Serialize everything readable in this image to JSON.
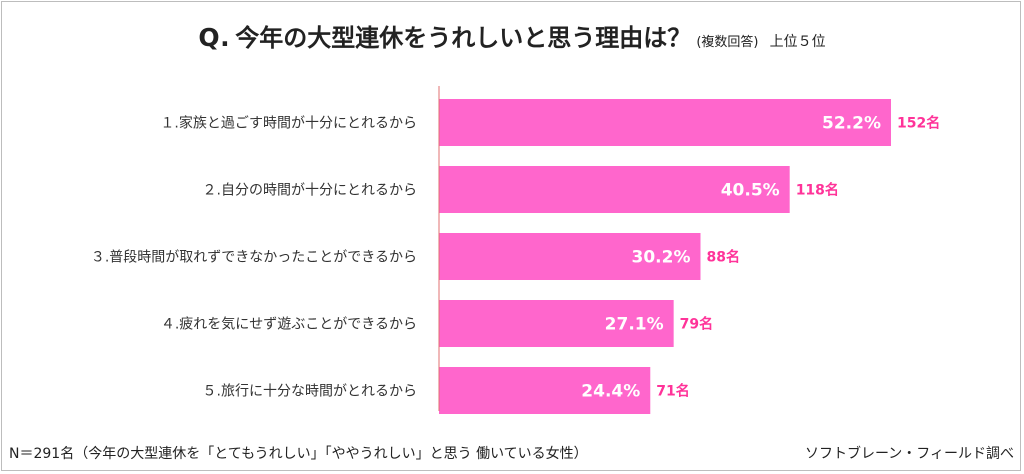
{
  "title": {
    "q": "Q.",
    "text": "今年の大型連休をうれしいと思う理由は？",
    "note": "(複数回答)",
    "rank": "上位５位"
  },
  "footer": {
    "sample": "N＝291名（今年の大型連休を「とてもうれしい」「ややうれしい」と思う 働いている女性）",
    "source": "ソフトブレーン・フィールド調べ"
  },
  "colors": {
    "bar": "#ff66cc",
    "count_label": "#ff3399",
    "axis": "#e07070"
  },
  "chart_data": {
    "type": "bar",
    "orientation": "horizontal",
    "categories": [
      "１.家族と過ごす時間が十分にとれるから",
      "２.自分の時間が十分にとれるから",
      "３.普段時間が取れずできなかったことができるから",
      "４.疲れを気にせず遊ぶことができるから",
      "５.旅行に十分な時間がとれるから"
    ],
    "values": [
      52.2,
      40.5,
      30.2,
      27.1,
      24.4
    ],
    "value_labels": [
      "52.2%",
      "40.5%",
      "30.2%",
      "27.1%",
      "24.4%"
    ],
    "counts": [
      "152名",
      "118名",
      "88名",
      "79名",
      "71名"
    ],
    "xlim": [
      0,
      100
    ],
    "grid": false,
    "legend": "none"
  }
}
